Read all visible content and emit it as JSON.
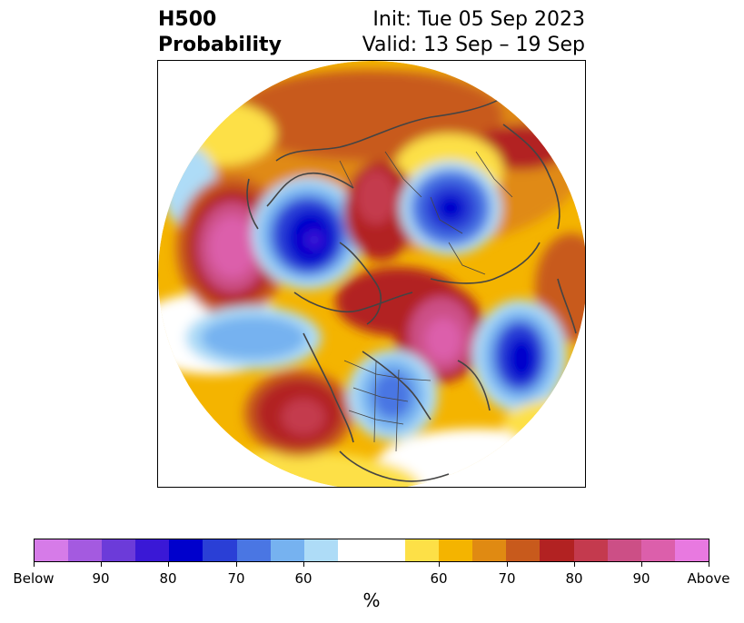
{
  "header": {
    "title_line1": "H500",
    "title_line2": "Probability",
    "init_text": "Init: Tue 05 Sep 2023",
    "valid_text": "Valid: 13 Sep – 19 Sep"
  },
  "colors": {
    "below": [
      "#d67be8",
      "#a45ae0",
      "#6c3bd9",
      "#3a18d6",
      "#0000cc",
      "#2a3fd6",
      "#4a76e3",
      "#76b2f0",
      "#aedcf7"
    ],
    "neutral": "#ffffff",
    "above": [
      "#fde047",
      "#f4b400",
      "#e08a12",
      "#c85a1c",
      "#b22222",
      "#c43a4e",
      "#cc4f86",
      "#dc5fab",
      "#e879e0"
    ],
    "land_outline": "#444444"
  },
  "colorbar": {
    "labels": [
      "Below",
      "90",
      "80",
      "70",
      "60",
      "60",
      "70",
      "80",
      "90",
      "Above"
    ],
    "unit": "%"
  }
}
